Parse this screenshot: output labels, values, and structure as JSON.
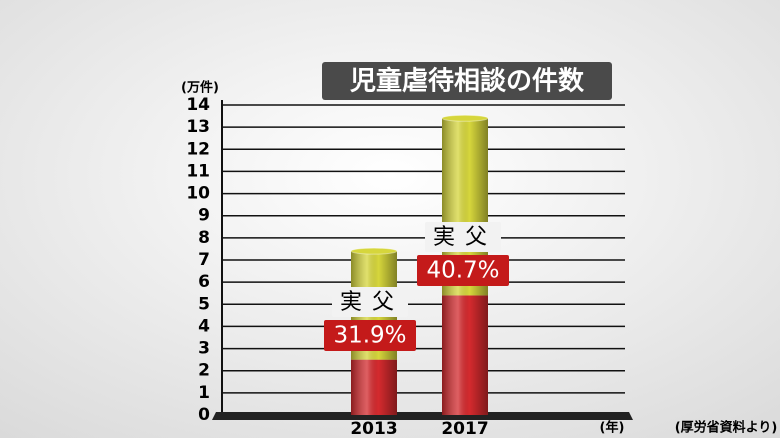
{
  "chart_data": {
    "type": "stacked_bar",
    "title": "児童虐待相談の件数",
    "y_unit": "(万件)",
    "x_unit": "(年)",
    "source": "(厚労省資料より)",
    "categories": [
      "2013",
      "2017"
    ],
    "series": [
      {
        "color": "#d42a2e",
        "values": [
          2.5,
          5.4
        ]
      },
      {
        "color": "#d6d63c",
        "values": [
          4.9,
          8.0
        ]
      }
    ],
    "ylim": [
      0,
      14
    ],
    "yticks": [
      0,
      1,
      2,
      3,
      4,
      5,
      6,
      7,
      8,
      9,
      10,
      11,
      12,
      13,
      14
    ],
    "grid": true,
    "annotations": [
      {
        "text": "実父",
        "share": "31.9%"
      },
      {
        "text": "実父",
        "share": "40.7%"
      }
    ]
  }
}
